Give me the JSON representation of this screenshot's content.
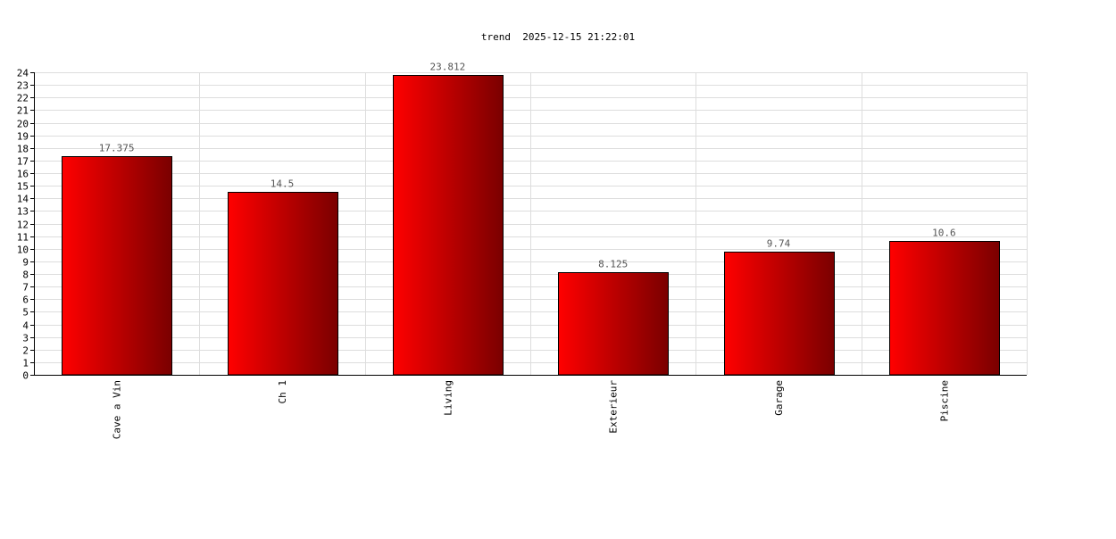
{
  "chart_data": {
    "type": "bar",
    "title": "trend  2025-12-15 21:22:01",
    "categories": [
      "Cave a Vin",
      "Ch 1",
      "Living",
      "Exterieur",
      "Garage",
      "Piscine"
    ],
    "values": [
      17.375,
      14.5,
      23.812,
      8.125,
      9.74,
      10.6
    ],
    "data_labels": [
      "17.375",
      "14.5",
      "23.812",
      "8.125",
      "9.74",
      "10.6"
    ],
    "xlabel": "",
    "ylabel": "",
    "ylim": [
      0,
      24
    ],
    "ytick_step": 1,
    "grid": true,
    "legend": "none",
    "colors": {
      "bar_start": "#ff0000",
      "bar_end": "#7a0000",
      "grid": "#dddddd",
      "label": "#555555"
    }
  }
}
